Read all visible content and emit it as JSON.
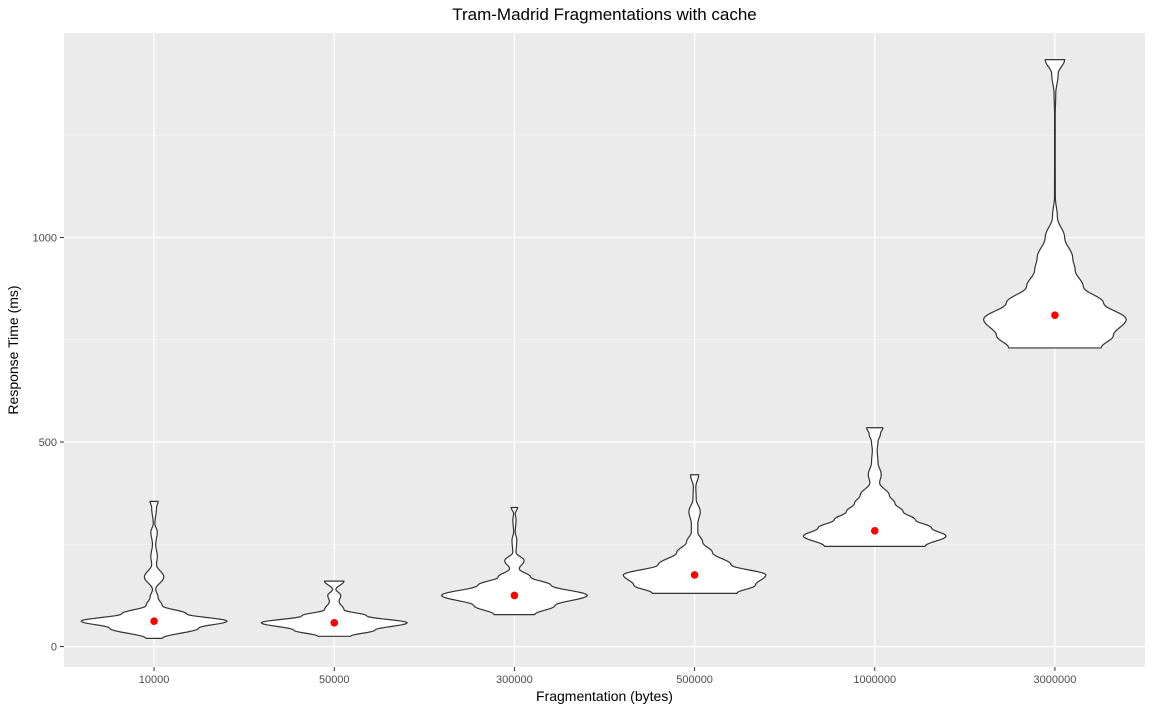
{
  "chart_data": {
    "type": "violin",
    "title": "Tram-Madrid Fragmentations with cache",
    "xlabel": "Fragmentation (bytes)",
    "ylabel": "Response Time (ms)",
    "ylim": [
      -50,
      1500
    ],
    "yticks": [
      0,
      500,
      1000
    ],
    "ytick_labels": [
      "0",
      "500",
      "1000"
    ],
    "grid": true,
    "colors": {
      "panel_background": "#EBEBEB",
      "grid_major": "#FFFFFF",
      "grid_minor": "#F5F5F5",
      "violin_fill": "#FFFFFF",
      "violin_stroke": "#333333",
      "mean_point": "#FF0000",
      "tick_mark": "#333333"
    },
    "categories": [
      "10000",
      "50000",
      "300000",
      "500000",
      "1000000",
      "3000000"
    ],
    "violins": [
      {
        "category": "10000",
        "mean": 62,
        "min": 20,
        "max": 355,
        "profile": [
          [
            20,
            0.1
          ],
          [
            45,
            0.55
          ],
          [
            62,
            0.9
          ],
          [
            80,
            0.4
          ],
          [
            100,
            0.1
          ],
          [
            120,
            0.05
          ],
          [
            140,
            0.02
          ],
          [
            170,
            0.12
          ],
          [
            200,
            0.03
          ],
          [
            220,
            0.04
          ],
          [
            250,
            0.02
          ],
          [
            280,
            0.04
          ],
          [
            300,
            0.01
          ],
          [
            340,
            0.03
          ],
          [
            355,
            0.05
          ]
        ]
      },
      {
        "category": "50000",
        "mean": 58,
        "min": 25,
        "max": 160,
        "profile": [
          [
            25,
            0.2
          ],
          [
            40,
            0.5
          ],
          [
            58,
            0.9
          ],
          [
            75,
            0.4
          ],
          [
            90,
            0.12
          ],
          [
            110,
            0.06
          ],
          [
            125,
            0.08
          ],
          [
            140,
            0.02
          ],
          [
            160,
            0.12
          ]
        ]
      },
      {
        "category": "300000",
        "mean": 125,
        "min": 78,
        "max": 340,
        "profile": [
          [
            78,
            0.25
          ],
          [
            100,
            0.5
          ],
          [
            125,
            0.9
          ],
          [
            150,
            0.45
          ],
          [
            170,
            0.2
          ],
          [
            190,
            0.06
          ],
          [
            210,
            0.12
          ],
          [
            230,
            0.02
          ],
          [
            260,
            0.03
          ],
          [
            280,
            0.01
          ],
          [
            310,
            0.02
          ],
          [
            325,
            0.01
          ],
          [
            340,
            0.04
          ]
        ]
      },
      {
        "category": "500000",
        "mean": 175,
        "min": 130,
        "max": 420,
        "profile": [
          [
            130,
            0.52
          ],
          [
            150,
            0.75
          ],
          [
            175,
            0.88
          ],
          [
            200,
            0.45
          ],
          [
            230,
            0.22
          ],
          [
            255,
            0.1
          ],
          [
            280,
            0.04
          ],
          [
            300,
            0.04
          ],
          [
            330,
            0.07
          ],
          [
            360,
            0.02
          ],
          [
            390,
            0.015
          ],
          [
            420,
            0.05
          ]
        ]
      },
      {
        "category": "1000000",
        "mean": 283,
        "min": 245,
        "max": 535,
        "profile": [
          [
            245,
            0.62
          ],
          [
            270,
            0.88
          ],
          [
            290,
            0.7
          ],
          [
            310,
            0.5
          ],
          [
            330,
            0.35
          ],
          [
            350,
            0.25
          ],
          [
            370,
            0.18
          ],
          [
            400,
            0.06
          ],
          [
            420,
            0.08
          ],
          [
            450,
            0.04
          ],
          [
            480,
            0.03
          ],
          [
            500,
            0.04
          ],
          [
            520,
            0.07
          ],
          [
            535,
            0.1
          ]
        ]
      },
      {
        "category": "3000000",
        "mean": 810,
        "min": 730,
        "max": 1435,
        "profile": [
          [
            730,
            0.57
          ],
          [
            760,
            0.72
          ],
          [
            800,
            0.88
          ],
          [
            840,
            0.6
          ],
          [
            880,
            0.35
          ],
          [
            920,
            0.25
          ],
          [
            950,
            0.22
          ],
          [
            1000,
            0.12
          ],
          [
            1050,
            0.03
          ],
          [
            1100,
            0.005
          ],
          [
            1200,
            0.004
          ],
          [
            1300,
            0.004
          ],
          [
            1350,
            0.01
          ],
          [
            1400,
            0.04
          ],
          [
            1435,
            0.12
          ]
        ]
      }
    ]
  }
}
